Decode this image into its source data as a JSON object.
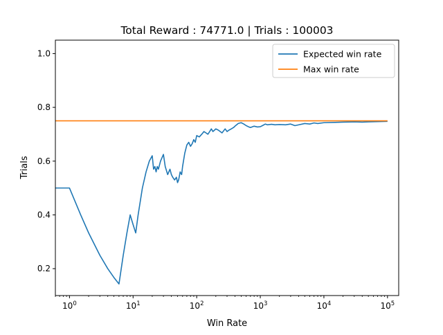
{
  "chart_data": {
    "type": "line",
    "title": "Total Reward : 74771.0 | Trials  : 100003",
    "xlabel": "Win Rate",
    "ylabel": "Trials",
    "xscale": "log",
    "xlim": [
      0.6,
      150000
    ],
    "ylim": [
      0.1,
      1.05
    ],
    "grid": false,
    "legend_position": "upper right",
    "x_ticks": [
      {
        "value": 1,
        "base": "10",
        "exp": "0"
      },
      {
        "value": 10,
        "base": "10",
        "exp": "1"
      },
      {
        "value": 100,
        "base": "10",
        "exp": "2"
      },
      {
        "value": 1000,
        "base": "10",
        "exp": "3"
      },
      {
        "value": 10000,
        "base": "10",
        "exp": "4"
      },
      {
        "value": 100000,
        "base": "10",
        "exp": "5"
      }
    ],
    "y_ticks": [
      {
        "value": 0.2,
        "label": "0.2"
      },
      {
        "value": 0.4,
        "label": "0.4"
      },
      {
        "value": 0.6,
        "label": "0.6"
      },
      {
        "value": 0.8,
        "label": "0.8"
      },
      {
        "value": 1.0,
        "label": "1.0"
      }
    ],
    "series": [
      {
        "name": "Expected win rate",
        "color": "#1f77b4",
        "x": [
          0.6,
          1,
          1.5,
          2,
          3,
          4,
          5,
          6,
          7,
          8,
          9,
          10,
          11,
          12,
          14,
          16,
          18,
          20,
          21,
          22,
          23,
          24,
          25,
          27,
          30,
          32,
          35,
          38,
          40,
          42,
          45,
          48,
          50,
          52,
          55,
          58,
          60,
          65,
          70,
          75,
          80,
          85,
          90,
          95,
          100,
          110,
          120,
          130,
          140,
          150,
          160,
          170,
          180,
          190,
          200,
          220,
          250,
          280,
          300,
          320,
          350,
          380,
          400,
          450,
          500,
          550,
          600,
          650,
          700,
          800,
          900,
          1000,
          1100,
          1200,
          1300,
          1500,
          1700,
          2000,
          2500,
          3000,
          3500,
          4000,
          5000,
          6000,
          7000,
          8000,
          10000,
          15000,
          20000,
          30000,
          40000,
          50000,
          70000,
          100000
        ],
        "values": [
          0.5,
          0.5,
          0.4,
          0.333,
          0.25,
          0.2,
          0.167,
          0.143,
          0.25,
          0.333,
          0.4,
          0.364,
          0.333,
          0.4,
          0.5,
          0.56,
          0.6,
          0.62,
          0.57,
          0.58,
          0.56,
          0.58,
          0.57,
          0.6,
          0.625,
          0.58,
          0.55,
          0.57,
          0.55,
          0.54,
          0.53,
          0.54,
          0.52,
          0.53,
          0.56,
          0.55,
          0.58,
          0.63,
          0.66,
          0.67,
          0.655,
          0.665,
          0.68,
          0.67,
          0.695,
          0.69,
          0.7,
          0.71,
          0.705,
          0.7,
          0.71,
          0.72,
          0.71,
          0.715,
          0.72,
          0.715,
          0.705,
          0.72,
          0.71,
          0.715,
          0.72,
          0.725,
          0.73,
          0.74,
          0.743,
          0.738,
          0.732,
          0.728,
          0.725,
          0.73,
          0.727,
          0.728,
          0.733,
          0.738,
          0.735,
          0.737,
          0.735,
          0.736,
          0.735,
          0.738,
          0.732,
          0.735,
          0.74,
          0.738,
          0.742,
          0.74,
          0.743,
          0.744,
          0.745,
          0.746,
          0.745,
          0.746,
          0.747,
          0.748
        ]
      },
      {
        "name": "Max win rate",
        "color": "#ff7f0e",
        "x": [
          0.6,
          100000
        ],
        "values": [
          0.75,
          0.75
        ]
      }
    ]
  }
}
